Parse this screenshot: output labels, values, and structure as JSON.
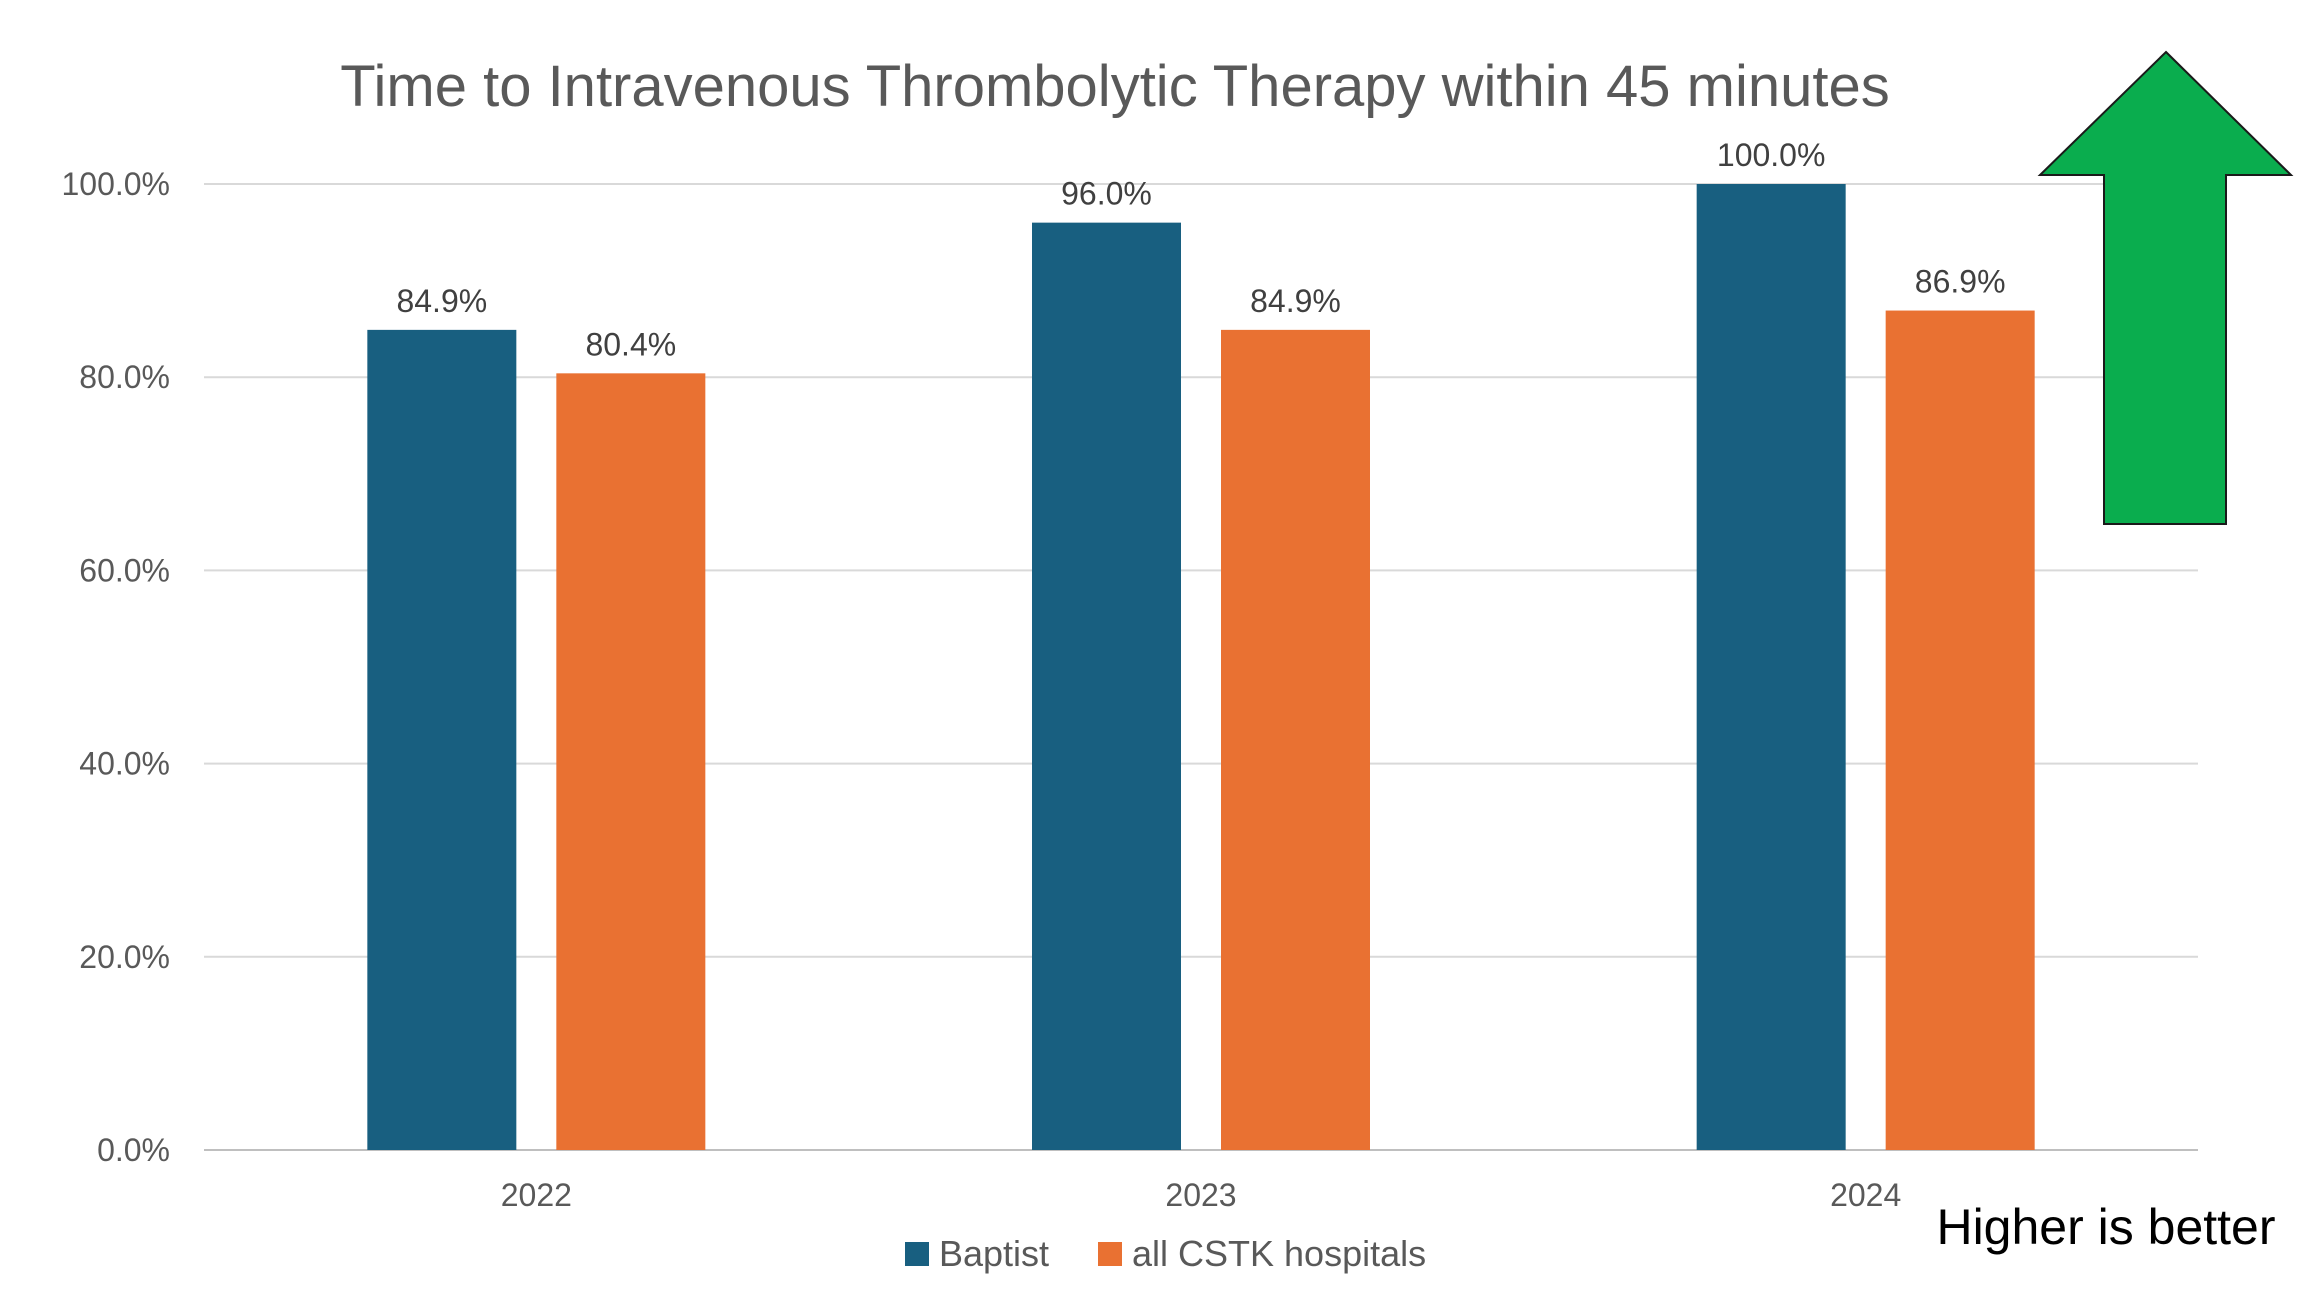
{
  "chart_data": {
    "type": "bar",
    "title": "Time to Intravenous Thrombolytic Therapy within 45 minutes",
    "xlabel": "",
    "ylabel": "",
    "categories": [
      "2022",
      "2023",
      "2024"
    ],
    "series": [
      {
        "name": "Baptist",
        "color": "#185F80",
        "values": [
          84.9,
          96.0,
          100.0
        ],
        "labels": [
          "84.9%",
          "96.0%",
          "100.0%"
        ]
      },
      {
        "name": "all CSTK hospitals",
        "color": "#E97132",
        "values": [
          80.4,
          84.9,
          86.9
        ],
        "labels": [
          "80.4%",
          "84.9%",
          "86.9%"
        ]
      }
    ],
    "ylim": [
      0,
      100
    ],
    "yticks": [
      0,
      20,
      40,
      60,
      80,
      100
    ],
    "ytick_labels": [
      "0.0%",
      "20.0%",
      "40.0%",
      "60.0%",
      "80.0%",
      "100.0%"
    ],
    "grid": true,
    "legend_position": "bottom"
  },
  "annotation": {
    "text": "Higher is better",
    "arrow_icon": "up-arrow-icon",
    "arrow_color": "#0AAD4E"
  }
}
